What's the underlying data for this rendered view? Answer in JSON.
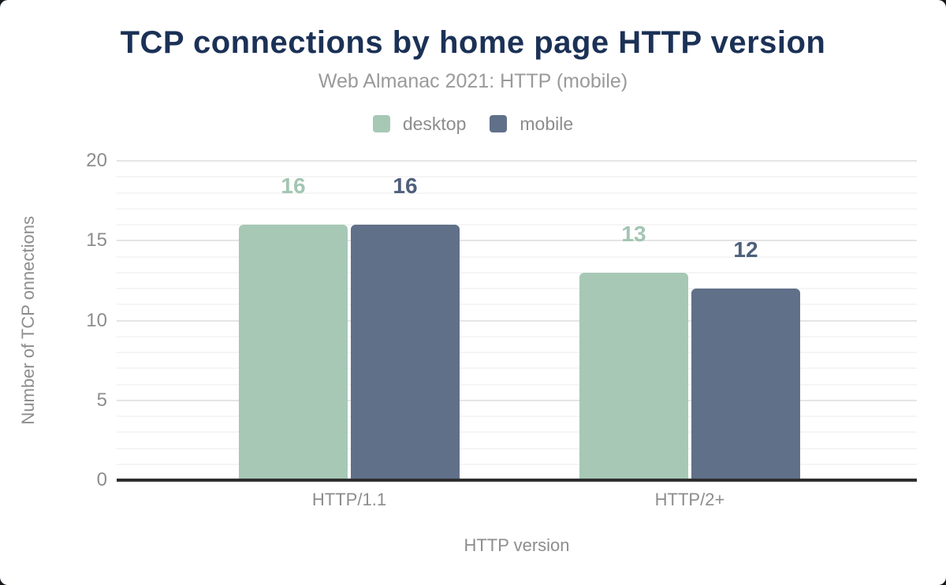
{
  "page": {
    "title": "TCP connections by home page HTTP version",
    "subtitle": "Web Almanac 2021: HTTP (mobile)"
  },
  "chart_data": {
    "type": "bar",
    "title": "TCP connections by home page HTTP version",
    "subtitle": "Web Almanac 2021: HTTP (mobile)",
    "categories": [
      "HTTP/1.1",
      "HTTP/2+"
    ],
    "series": [
      {
        "name": "desktop",
        "values": [
          16,
          13
        ],
        "color": "#a6c8b5",
        "label_color": "#a2c6b2"
      },
      {
        "name": "mobile",
        "values": [
          16,
          12
        ],
        "color": "#607089",
        "label_color": "#4f607c"
      }
    ],
    "value_labels_shown": [
      [
        "16",
        "16"
      ],
      [
        "13",
        "12"
      ]
    ],
    "xlabel": "HTTP version",
    "ylabel": "Number of TCP onnections",
    "ylim": [
      0,
      20
    ],
    "yticks": [
      0,
      5,
      10,
      15,
      20
    ],
    "grid": {
      "minor_step": 1,
      "major_step": 5,
      "enabled": true
    },
    "legend_position": "top",
    "colors": {
      "title": "#1b3156",
      "subtitle_text": "#9a9a9a",
      "axis_text": "#8d8d8d",
      "axis_line": "#2f2f2f",
      "gridline_minor": "#f5f5f5",
      "gridline_major": "#e5e5e5"
    }
  }
}
